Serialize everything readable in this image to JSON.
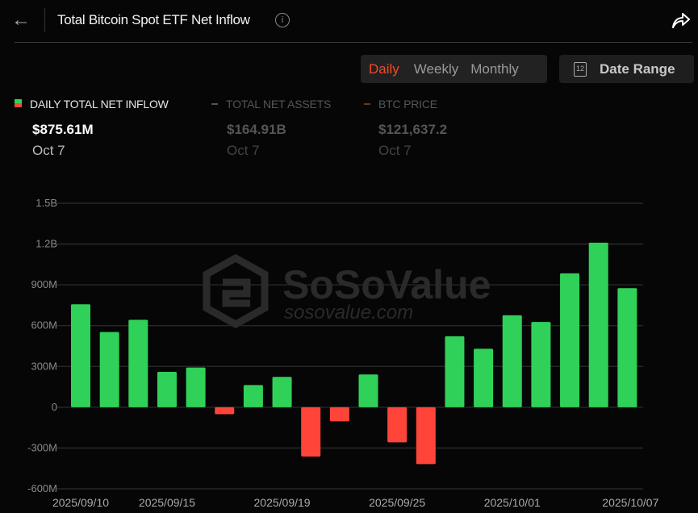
{
  "header": {
    "title": "Total Bitcoin Spot ETF Net Inflow",
    "back_icon": "arrow-left-icon",
    "info_icon": "info-icon",
    "share_icon": "share-icon"
  },
  "period_tabs": [
    {
      "label": "Daily",
      "active": true
    },
    {
      "label": "Weekly",
      "active": false
    },
    {
      "label": "Monthly",
      "active": false
    }
  ],
  "date_range": {
    "label": "Date Range",
    "icon_text": "12"
  },
  "legend": [
    {
      "name": "DAILY TOTAL NET INFLOW",
      "value": "$875.61M",
      "date": "Oct 7",
      "active": true
    },
    {
      "name": "TOTAL NET ASSETS",
      "value": "$164.91B",
      "date": "Oct 7",
      "active": false
    },
    {
      "name": "BTC PRICE",
      "value": "$121,637.2",
      "date": "Oct 7",
      "active": false
    }
  ],
  "watermark": {
    "brand": "SoSoValue",
    "url": "sosovalue.com"
  },
  "colors": {
    "positive": "#30d158",
    "negative": "#ff453a",
    "active_tab": "#f04a2a",
    "btc_price": "#8a4a1a"
  },
  "chart_data": {
    "type": "bar",
    "categories": [
      "2025/09/10",
      "2025/09/11",
      "2025/09/12",
      "2025/09/15",
      "2025/09/16",
      "2025/09/17",
      "2025/09/18",
      "2025/09/19",
      "2025/09/22",
      "2025/09/23",
      "2025/09/24",
      "2025/09/25",
      "2025/09/26",
      "2025/09/29",
      "2025/09/30",
      "2025/10/01",
      "2025/10/02",
      "2025/10/03",
      "2025/10/06",
      "2025/10/07"
    ],
    "values": [
      757,
      553,
      643,
      260,
      292,
      -51,
      163,
      223,
      -363,
      -104,
      241,
      -258,
      -418,
      522,
      430,
      676,
      627,
      985,
      1210,
      875.61
    ],
    "unit": "M USD",
    "ylim": [
      -600,
      1500
    ],
    "yticks": [
      "1.5B",
      "1.2B",
      "900M",
      "600M",
      "300M",
      "0",
      "-300M",
      "-600M"
    ],
    "ytick_values": [
      1500,
      1200,
      900,
      600,
      300,
      0,
      -300,
      -600
    ],
    "xtick_labels": [
      "2025/09/10",
      "2025/09/15",
      "2025/09/19",
      "2025/09/25",
      "2025/10/01",
      "2025/10/07"
    ],
    "grid": true
  }
}
